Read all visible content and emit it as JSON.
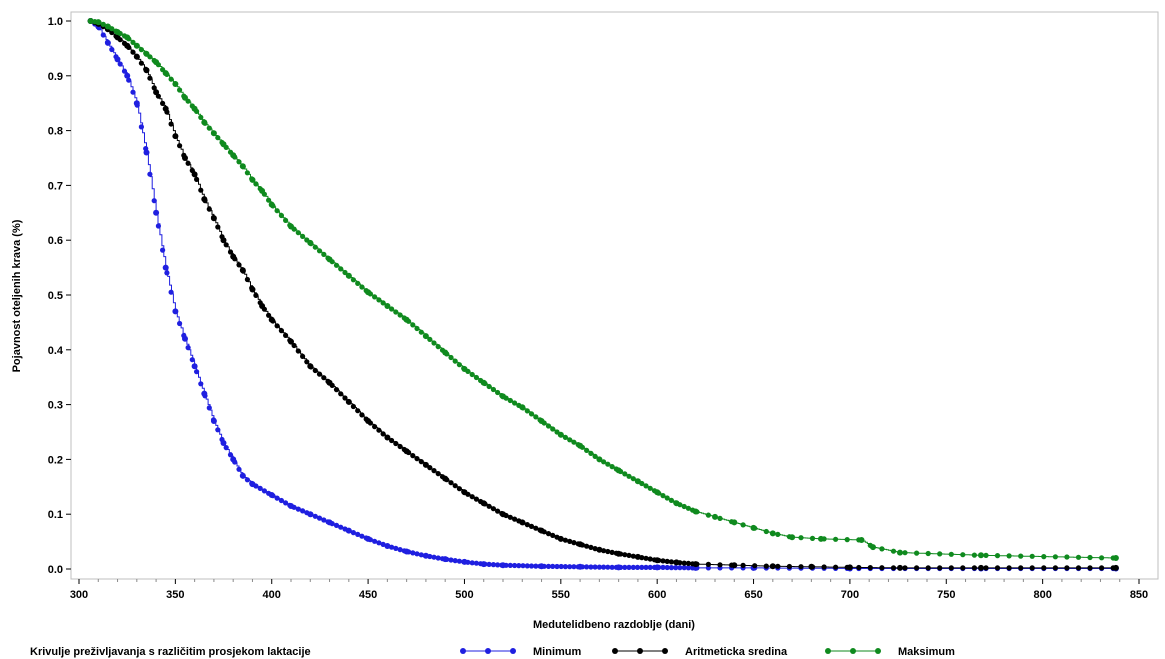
{
  "chart_data": {
    "type": "line",
    "title": "",
    "xlabel": "Medutelidbeno razdoblje (dani)",
    "ylabel": "Pojavnost otelјenih krava (%)",
    "xlim": [
      300,
      850
    ],
    "ylim": [
      0.0,
      1.0
    ],
    "x_ticks": [
      300,
      350,
      400,
      450,
      500,
      550,
      600,
      650,
      700,
      750,
      800,
      850
    ],
    "y_ticks": [
      0.0,
      0.1,
      0.2,
      0.3,
      0.4,
      0.5,
      0.6,
      0.7,
      0.8,
      0.9,
      1.0
    ],
    "legend_title": "Krivulje preživljavanja s različitim prosjekom laktacije",
    "legend_position": "bottom",
    "series": [
      {
        "name": "Minimum",
        "color": "#1f1fe0",
        "points": [
          [
            306,
            1.0
          ],
          [
            310,
            0.99
          ],
          [
            315,
            0.96
          ],
          [
            320,
            0.93
          ],
          [
            325,
            0.9
          ],
          [
            330,
            0.85
          ],
          [
            335,
            0.76
          ],
          [
            340,
            0.65
          ],
          [
            345,
            0.55
          ],
          [
            350,
            0.47
          ],
          [
            355,
            0.42
          ],
          [
            360,
            0.37
          ],
          [
            365,
            0.32
          ],
          [
            370,
            0.27
          ],
          [
            375,
            0.23
          ],
          [
            380,
            0.2
          ],
          [
            385,
            0.17
          ],
          [
            390,
            0.155
          ],
          [
            400,
            0.135
          ],
          [
            410,
            0.115
          ],
          [
            420,
            0.1
          ],
          [
            430,
            0.085
          ],
          [
            440,
            0.07
          ],
          [
            450,
            0.055
          ],
          [
            460,
            0.042
          ],
          [
            470,
            0.032
          ],
          [
            480,
            0.024
          ],
          [
            490,
            0.018
          ],
          [
            500,
            0.013
          ],
          [
            510,
            0.009
          ],
          [
            520,
            0.007
          ],
          [
            540,
            0.005
          ],
          [
            560,
            0.004
          ],
          [
            580,
            0.003
          ],
          [
            600,
            0.003
          ],
          [
            620,
            0.002
          ],
          [
            650,
            0.002
          ],
          [
            700,
            0.001
          ],
          [
            768,
            0.001
          ],
          [
            838,
            0.001
          ]
        ]
      },
      {
        "name": "Aritmeticka sredina",
        "color": "#000000",
        "points": [
          [
            306,
            1.0
          ],
          [
            310,
            0.995
          ],
          [
            315,
            0.985
          ],
          [
            320,
            0.97
          ],
          [
            325,
            0.955
          ],
          [
            330,
            0.935
          ],
          [
            335,
            0.91
          ],
          [
            340,
            0.87
          ],
          [
            345,
            0.84
          ],
          [
            350,
            0.79
          ],
          [
            355,
            0.75
          ],
          [
            360,
            0.72
          ],
          [
            365,
            0.675
          ],
          [
            370,
            0.64
          ],
          [
            375,
            0.6
          ],
          [
            380,
            0.57
          ],
          [
            385,
            0.545
          ],
          [
            390,
            0.51
          ],
          [
            395,
            0.48
          ],
          [
            400,
            0.455
          ],
          [
            410,
            0.415
          ],
          [
            420,
            0.37
          ],
          [
            430,
            0.34
          ],
          [
            440,
            0.305
          ],
          [
            450,
            0.27
          ],
          [
            460,
            0.24
          ],
          [
            470,
            0.215
          ],
          [
            480,
            0.19
          ],
          [
            490,
            0.165
          ],
          [
            500,
            0.14
          ],
          [
            510,
            0.12
          ],
          [
            520,
            0.1
          ],
          [
            530,
            0.085
          ],
          [
            540,
            0.07
          ],
          [
            550,
            0.055
          ],
          [
            560,
            0.045
          ],
          [
            570,
            0.035
          ],
          [
            580,
            0.028
          ],
          [
            590,
            0.022
          ],
          [
            600,
            0.016
          ],
          [
            610,
            0.012
          ],
          [
            620,
            0.009
          ],
          [
            640,
            0.007
          ],
          [
            660,
            0.005
          ],
          [
            680,
            0.004
          ],
          [
            700,
            0.003
          ],
          [
            726,
            0.002
          ],
          [
            768,
            0.002
          ],
          [
            838,
            0.002
          ]
        ]
      },
      {
        "name": "Maksimum",
        "color": "#0f8a1e",
        "points": [
          [
            306,
            1.0
          ],
          [
            310,
            0.998
          ],
          [
            315,
            0.99
          ],
          [
            320,
            0.98
          ],
          [
            325,
            0.97
          ],
          [
            330,
            0.955
          ],
          [
            335,
            0.94
          ],
          [
            340,
            0.925
          ],
          [
            345,
            0.905
          ],
          [
            350,
            0.885
          ],
          [
            355,
            0.86
          ],
          [
            360,
            0.84
          ],
          [
            365,
            0.815
          ],
          [
            370,
            0.795
          ],
          [
            375,
            0.775
          ],
          [
            380,
            0.755
          ],
          [
            385,
            0.735
          ],
          [
            390,
            0.71
          ],
          [
            395,
            0.69
          ],
          [
            400,
            0.665
          ],
          [
            410,
            0.625
          ],
          [
            420,
            0.595
          ],
          [
            430,
            0.565
          ],
          [
            440,
            0.535
          ],
          [
            450,
            0.505
          ],
          [
            460,
            0.48
          ],
          [
            470,
            0.455
          ],
          [
            480,
            0.425
          ],
          [
            490,
            0.395
          ],
          [
            500,
            0.365
          ],
          [
            510,
            0.34
          ],
          [
            520,
            0.315
          ],
          [
            530,
            0.295
          ],
          [
            540,
            0.27
          ],
          [
            550,
            0.245
          ],
          [
            560,
            0.225
          ],
          [
            570,
            0.2
          ],
          [
            580,
            0.18
          ],
          [
            590,
            0.16
          ],
          [
            600,
            0.14
          ],
          [
            610,
            0.12
          ],
          [
            620,
            0.105
          ],
          [
            630,
            0.095
          ],
          [
            640,
            0.085
          ],
          [
            650,
            0.075
          ],
          [
            660,
            0.065
          ],
          [
            670,
            0.058
          ],
          [
            685,
            0.055
          ],
          [
            706,
            0.053
          ],
          [
            712,
            0.04
          ],
          [
            726,
            0.03
          ],
          [
            768,
            0.025
          ],
          [
            838,
            0.02
          ]
        ]
      }
    ]
  }
}
